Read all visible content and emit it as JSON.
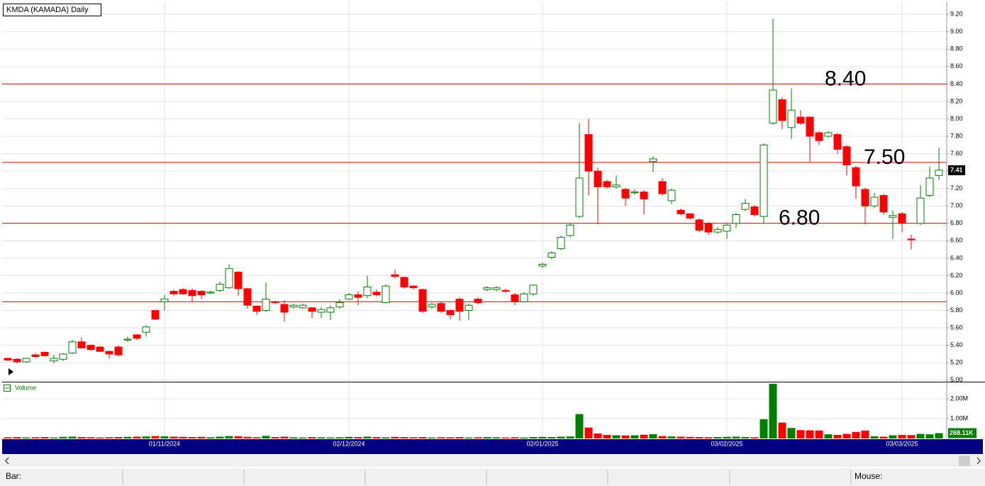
{
  "chart_data": [
    {
      "type": "candlestick",
      "title": "KMDA (KAMADA) Daily",
      "ylim": [
        4.99,
        9.34
      ],
      "yticks": [
        {
          "value": 5.0,
          "label": "5.00"
        },
        {
          "value": 5.2,
          "label": "5.20"
        },
        {
          "value": 5.4,
          "label": "5.40"
        },
        {
          "value": 5.6,
          "label": "5.60"
        },
        {
          "value": 5.8,
          "label": "5.80"
        },
        {
          "value": 6.0,
          "label": "6.00"
        },
        {
          "value": 6.2,
          "label": "6.20"
        },
        {
          "value": 6.4,
          "label": "6.40"
        },
        {
          "value": 6.6,
          "label": "6.60"
        },
        {
          "value": 6.8,
          "label": "6.80"
        },
        {
          "value": 7.0,
          "label": "7.00"
        },
        {
          "value": 7.2,
          "label": "7.20"
        },
        {
          "value": 7.4,
          "label": "7.40"
        },
        {
          "value": 7.6,
          "label": "7.60"
        },
        {
          "value": 7.8,
          "label": "7.80"
        },
        {
          "value": 8.0,
          "label": "8.00"
        },
        {
          "value": 8.2,
          "label": "8.20"
        },
        {
          "value": 8.4,
          "label": "8.40"
        },
        {
          "value": 8.6,
          "label": "8.60"
        },
        {
          "value": 8.8,
          "label": "8.80"
        },
        {
          "value": 9.0,
          "label": "9.00"
        },
        {
          "value": 9.2,
          "label": "9.20"
        }
      ],
      "grid": true,
      "up_color": "#008000",
      "down_color": "#ff0000",
      "hline_color": "#cc0000",
      "hlines": [
        {
          "value": 8.4,
          "label": "8.40"
        },
        {
          "value": 7.5,
          "label": "7.50"
        },
        {
          "value": 6.8,
          "label": "6.80"
        },
        {
          "value": 5.9
        }
      ],
      "open": [
        5.25,
        5.24,
        5.21,
        5.29,
        5.32,
        5.22,
        5.24,
        5.31,
        5.44,
        5.4,
        5.38,
        5.33,
        5.38,
        5.46,
        5.52,
        5.55,
        5.8,
        5.9,
        6.02,
        6.04,
        6.03,
        6.02,
        6.0,
        6.03,
        6.06,
        6.24,
        6.05,
        5.85,
        5.8,
        5.9,
        5.87,
        5.84,
        5.83,
        5.83,
        5.78,
        5.78,
        5.84,
        5.93,
        5.98,
        5.97,
        6.01,
        5.89,
        6.21,
        6.18,
        6.08,
        6.04,
        5.84,
        5.88,
        5.8,
        5.93,
        5.8,
        5.93,
        6.04,
        6.04,
        6.03,
        5.98,
        5.9,
        5.99,
        6.31,
        6.41,
        6.51,
        6.66,
        6.88,
        7.82,
        7.4,
        7.28,
        7.22,
        7.19,
        7.15,
        7.16,
        7.51,
        7.28,
        7.06,
        6.95,
        6.91,
        6.84,
        6.8,
        6.7,
        6.71,
        6.8,
        6.96,
        6.99,
        6.88,
        7.95,
        8.22,
        7.9,
        8.02,
        8.02,
        7.84,
        7.8,
        7.82,
        7.68,
        7.44,
        7.19,
        7.0,
        7.12,
        6.87,
        6.91,
        6.62,
        6.8,
        7.12,
        7.35
      ],
      "high": [
        5.26,
        5.25,
        5.26,
        5.31,
        5.33,
        5.29,
        5.31,
        5.46,
        5.49,
        5.41,
        5.39,
        5.34,
        5.4,
        5.5,
        5.53,
        5.63,
        5.81,
        5.98,
        6.04,
        6.06,
        6.05,
        6.03,
        6.03,
        6.13,
        6.33,
        6.25,
        6.06,
        5.86,
        6.12,
        5.91,
        5.92,
        5.88,
        5.88,
        5.84,
        5.84,
        5.86,
        5.93,
        6.0,
        6.02,
        6.2,
        6.04,
        6.1,
        6.27,
        6.19,
        6.09,
        6.05,
        5.89,
        5.9,
        5.81,
        5.95,
        5.88,
        5.95,
        6.08,
        6.08,
        6.05,
        6.0,
        6.01,
        6.1,
        6.35,
        6.48,
        6.66,
        6.8,
        7.95,
        8.0,
        7.44,
        7.3,
        7.35,
        7.21,
        7.19,
        7.18,
        7.57,
        7.32,
        7.2,
        6.97,
        6.92,
        6.86,
        6.82,
        6.76,
        6.8,
        6.92,
        7.08,
        7.01,
        7.72,
        9.15,
        8.25,
        8.35,
        8.1,
        8.02,
        7.86,
        7.86,
        7.84,
        7.7,
        7.46,
        7.21,
        7.15,
        7.14,
        6.95,
        6.93,
        6.67,
        7.24,
        7.45,
        7.67
      ],
      "low": [
        5.22,
        5.19,
        5.2,
        5.26,
        5.27,
        5.19,
        5.22,
        5.3,
        5.36,
        5.34,
        5.32,
        5.25,
        5.27,
        5.44,
        5.46,
        5.5,
        5.69,
        5.8,
        5.97,
        5.98,
        5.9,
        5.93,
        5.99,
        6.01,
        6.05,
        5.97,
        5.82,
        5.75,
        5.78,
        5.87,
        5.67,
        5.82,
        5.82,
        5.71,
        5.71,
        5.69,
        5.82,
        5.92,
        5.86,
        5.94,
        5.96,
        5.88,
        6.17,
        6.05,
        6.04,
        5.77,
        5.82,
        5.77,
        5.7,
        5.68,
        5.69,
        5.87,
        6.02,
        6.02,
        6.0,
        5.86,
        5.89,
        5.97,
        6.29,
        6.39,
        6.49,
        6.64,
        6.86,
        7.12,
        6.79,
        7.2,
        7.2,
        7.0,
        7.13,
        6.9,
        7.39,
        7.12,
        7.02,
        6.89,
        6.84,
        6.7,
        6.67,
        6.68,
        6.62,
        6.75,
        6.94,
        6.88,
        6.8,
        7.93,
        7.88,
        7.77,
        7.93,
        7.5,
        7.7,
        7.78,
        7.6,
        7.35,
        7.08,
        6.79,
        6.98,
        6.9,
        6.62,
        6.7,
        6.5,
        6.78,
        7.1,
        7.3
      ],
      "close": [
        5.23,
        5.21,
        5.25,
        5.27,
        5.28,
        5.25,
        5.3,
        5.44,
        5.37,
        5.35,
        5.33,
        5.3,
        5.29,
        5.47,
        5.48,
        5.61,
        5.7,
        5.93,
        5.99,
        5.99,
        5.97,
        5.98,
        6.01,
        6.1,
        6.28,
        6.05,
        5.86,
        5.79,
        5.93,
        5.89,
        5.78,
        5.86,
        5.86,
        5.79,
        5.81,
        5.83,
        5.89,
        5.98,
        5.95,
        6.07,
        5.98,
        6.08,
        6.19,
        6.07,
        6.06,
        5.79,
        5.87,
        5.79,
        5.75,
        5.79,
        5.86,
        5.89,
        6.06,
        6.06,
        6.02,
        5.9,
        5.99,
        6.09,
        6.33,
        6.46,
        6.64,
        6.78,
        7.32,
        7.4,
        7.22,
        7.22,
        7.24,
        7.09,
        7.16,
        7.08,
        7.54,
        7.14,
        7.18,
        6.91,
        6.86,
        6.72,
        6.7,
        6.73,
        6.78,
        6.9,
        7.03,
        6.9,
        7.7,
        8.33,
        7.98,
        8.1,
        7.95,
        7.8,
        7.75,
        7.84,
        7.65,
        7.47,
        7.23,
        7.0,
        7.1,
        6.93,
        6.89,
        6.8,
        6.61,
        7.09,
        7.32,
        7.41
      ]
    },
    {
      "type": "volume",
      "legend": "Volume",
      "ylim": [
        0,
        2790000
      ],
      "yticks": [
        {
          "value": 1000000,
          "label": "1.00M"
        },
        {
          "value": 2000000,
          "label": "2.00M"
        }
      ],
      "up_color": "#008000",
      "down_color": "#ff0000",
      "categories": [
        null,
        null,
        null,
        null,
        null,
        null,
        null,
        null,
        null,
        null,
        null,
        null,
        null,
        null,
        null,
        null,
        null,
        "01/11/2024",
        null,
        null,
        null,
        null,
        null,
        null,
        null,
        null,
        null,
        null,
        null,
        null,
        null,
        null,
        null,
        null,
        null,
        null,
        null,
        "02/12/2024",
        null,
        null,
        null,
        null,
        null,
        null,
        null,
        null,
        null,
        null,
        null,
        null,
        null,
        null,
        null,
        null,
        null,
        null,
        null,
        null,
        "02/01/2025",
        null,
        null,
        null,
        null,
        null,
        null,
        null,
        null,
        null,
        null,
        null,
        null,
        null,
        null,
        null,
        null,
        null,
        null,
        null,
        "03/02/2025",
        null,
        null,
        null,
        null,
        null,
        null,
        null,
        null,
        null,
        null,
        null,
        null,
        null,
        null,
        null,
        null,
        null,
        null,
        "03/03/2025",
        null,
        null,
        null,
        null
      ],
      "values": [
        60000,
        70000,
        50000,
        60000,
        70000,
        50000,
        80000,
        90000,
        70000,
        60000,
        50000,
        60000,
        70000,
        80000,
        90000,
        100000,
        120000,
        110000,
        90000,
        80000,
        70000,
        80000,
        60000,
        90000,
        120000,
        110000,
        80000,
        60000,
        130000,
        70000,
        90000,
        60000,
        50000,
        70000,
        60000,
        50000,
        60000,
        80000,
        70000,
        90000,
        70000,
        60000,
        80000,
        70000,
        60000,
        70000,
        50000,
        60000,
        60000,
        70000,
        50000,
        60000,
        70000,
        60000,
        50000,
        60000,
        50000,
        70000,
        80000,
        70000,
        90000,
        100000,
        1230000,
        550000,
        250000,
        180000,
        160000,
        150000,
        160000,
        190000,
        220000,
        120000,
        100000,
        90000,
        80000,
        70000,
        60000,
        70000,
        80000,
        90000,
        70000,
        60000,
        970000,
        2760000,
        800000,
        530000,
        420000,
        410000,
        400000,
        210000,
        180000,
        230000,
        330000,
        400000,
        110000,
        90000,
        160000,
        180000,
        170000,
        230000,
        210000,
        268110
      ],
      "value_labels": [
        null,
        null,
        null,
        null,
        null,
        null,
        null,
        null,
        null,
        null,
        null,
        null,
        null,
        null,
        null,
        null,
        null,
        null,
        null,
        null,
        null,
        null,
        null,
        null,
        null,
        null,
        null,
        null,
        null,
        null,
        null,
        null,
        null,
        null,
        null,
        null,
        null,
        null,
        null,
        null,
        null,
        null,
        null,
        null,
        null,
        null,
        null,
        null,
        null,
        null,
        null,
        null,
        null,
        null,
        null,
        null,
        null,
        null,
        null,
        null,
        null,
        null,
        null,
        null,
        null,
        null,
        null,
        null,
        null,
        null,
        null,
        null,
        null,
        null,
        null,
        null,
        null,
        null,
        null,
        null,
        null,
        null,
        null,
        null,
        null,
        null,
        null,
        null,
        null,
        null,
        null,
        null,
        null,
        null,
        null,
        null,
        null,
        null,
        null,
        null,
        null,
        "268.11K"
      ]
    }
  ],
  "status_bar": {
    "bar": "Bar:",
    "mouse": "Mouse:"
  }
}
